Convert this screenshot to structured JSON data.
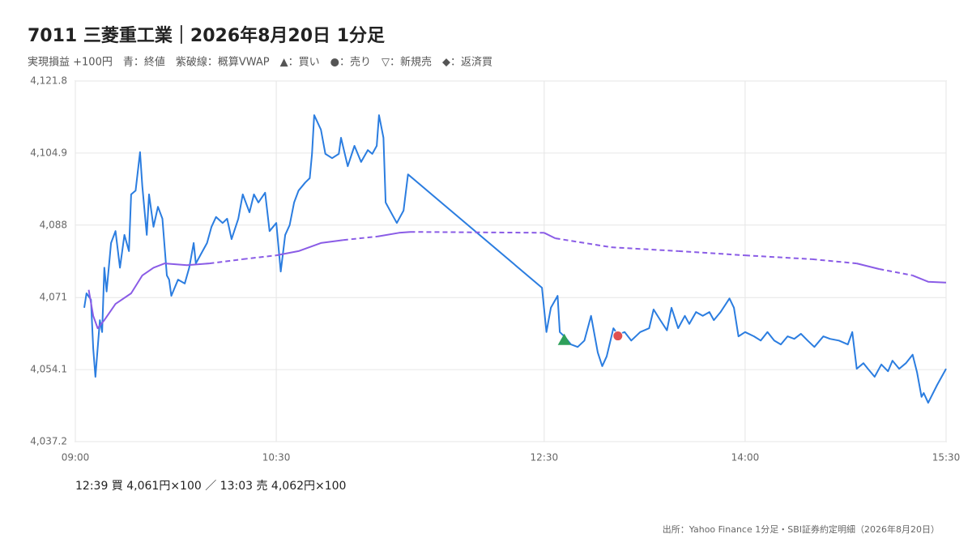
{
  "chart_data": {
    "type": "line",
    "title": "7011 三菱重工業｜2026年8月20日 1分足",
    "subtitle": "実現損益 +100円　青：終値　紫破線：概算VWAP　▲：買い　●：売り　▽：新規売　◆：返済買",
    "note": "12:39 買 4,061円×100 ／ 13:03 売 4,062円×100",
    "source": "出所：Yahoo Finance 1分足・SBI証券約定明細（2026年8月20日）",
    "xlim": [
      "09:00",
      "15:30"
    ],
    "xticks": [
      "09:00",
      "10:30",
      "12:30",
      "14:00",
      "15:30"
    ],
    "ylim": [
      4037.2,
      4121.8
    ],
    "yticks": [
      {
        "value": 4037.2,
        "label": "4,037.2"
      },
      {
        "value": 4054.1,
        "label": "4,054.1"
      },
      {
        "value": 4071,
        "label": "4,071"
      },
      {
        "value": 4088,
        "label": "4,088"
      },
      {
        "value": 4104.9,
        "label": "4,104.9"
      },
      {
        "value": 4121.8,
        "label": "4,121.8"
      }
    ],
    "grid": true,
    "series": [
      {
        "color": "#2b7de0",
        "gap_style": "solid",
        "x": [
          "09:04",
          "09:05",
          "09:07",
          "09:08",
          "09:09",
          "09:11",
          "09:12",
          "09:13",
          "09:14",
          "09:16",
          "09:18",
          "09:20",
          "09:22",
          "09:24",
          "09:25",
          "09:27",
          "09:29",
          "09:30",
          "09:32",
          "09:33",
          "09:35",
          "09:37",
          "09:39",
          "09:41",
          "09:42",
          "09:43",
          "09:46",
          "09:49",
          "09:51",
          "09:53",
          "09:54",
          "09:57",
          "09:59",
          "10:01",
          "10:03",
          "10:06",
          "10:08",
          "10:10",
          "10:13",
          "10:15",
          "10:18",
          "10:20",
          "10:22",
          "10:25",
          "10:27",
          "10:30",
          "10:32",
          "10:34",
          "10:36",
          "10:38",
          "10:40",
          "10:43",
          "10:45",
          "10:46",
          "10:47",
          "10:50",
          "10:52",
          "10:55",
          "10:58",
          "10:59",
          "11:02",
          "11:05",
          "11:08",
          "11:11",
          "11:13",
          "11:15",
          "11:16",
          "11:18",
          "11:19",
          "11:22",
          "11:24",
          "11:27",
          "11:29",
          "12:29",
          "12:31",
          "12:33",
          "12:36",
          "12:37",
          "12:39",
          "12:42",
          "12:45",
          "12:48",
          "12:51",
          "12:54",
          "12:56",
          "12:58",
          "13:01",
          "13:03",
          "13:06",
          "13:09",
          "13:13",
          "13:17",
          "13:19",
          "13:22",
          "13:25",
          "13:27",
          "13:30",
          "13:33",
          "13:35",
          "13:38",
          "13:41",
          "13:44",
          "13:46",
          "13:49",
          "13:53",
          "13:55",
          "13:57",
          "14:00",
          "14:04",
          "14:07",
          "14:10",
          "14:13",
          "14:16",
          "14:19",
          "14:22",
          "14:25",
          "14:28",
          "14:31",
          "14:35",
          "14:38",
          "14:42",
          "14:46",
          "14:48",
          "14:50",
          "14:53",
          "14:55",
          "14:58",
          "15:01",
          "15:04",
          "15:06",
          "15:09",
          "15:12",
          "15:15",
          "15:17",
          "15:19",
          "15:20",
          "15:22",
          "15:26",
          "15:30"
        ],
        "values": [
          4068.6,
          4072,
          4070.5,
          4059,
          4052.4,
          4065.7,
          4062.9,
          4078,
          4072.4,
          4083.8,
          4086.6,
          4078,
          4085.7,
          4081.9,
          4095.2,
          4096.1,
          4105.1,
          4097.1,
          4085.7,
          4095.2,
          4087.6,
          4092.3,
          4089.5,
          4076.2,
          4075.2,
          4071.4,
          4075.2,
          4074.3,
          4078,
          4083.8,
          4079,
          4081.9,
          4083.8,
          4087.6,
          4089.9,
          4088.5,
          4089.5,
          4084.7,
          4089.5,
          4095.2,
          4091,
          4095.2,
          4093.3,
          4095.6,
          4086.6,
          4088.5,
          4077.1,
          4085.7,
          4088,
          4093.3,
          4096.1,
          4098,
          4099,
          4104.7,
          4113.8,
          4110.4,
          4104.7,
          4103.7,
          4104.7,
          4108.5,
          4101.8,
          4106.6,
          4102.8,
          4105.6,
          4104.7,
          4106.6,
          4113.8,
          4108.5,
          4093.3,
          4090.4,
          4088.5,
          4091.4,
          4099.9,
          4073.3,
          4062.9,
          4068.6,
          4071.4,
          4062.9,
          4061.9,
          4060,
          4059.4,
          4060.9,
          4066.7,
          4058.1,
          4054.9,
          4057.2,
          4063.8,
          4062.3,
          4062.9,
          4060.9,
          4062.9,
          4063.8,
          4068.2,
          4065.7,
          4063.3,
          4068.6,
          4063.8,
          4066.7,
          4064.8,
          4067.6,
          4066.7,
          4067.6,
          4065.7,
          4067.6,
          4070.8,
          4068.6,
          4061.9,
          4062.9,
          4061.9,
          4060.9,
          4062.9,
          4060.9,
          4060,
          4061.9,
          4061.3,
          4062.5,
          4060.9,
          4059.4,
          4061.9,
          4061.3,
          4060.9,
          4060,
          4062.9,
          4054.3,
          4055.6,
          4054.3,
          4052.4,
          4055.3,
          4053.7,
          4056.2,
          4054.3,
          4055.6,
          4057.6,
          4053.4,
          4047.7,
          4048.6,
          4046.3,
          4050.5,
          4054.3
        ]
      },
      {
        "color": "#8a5ce6",
        "gap_style": "dashed",
        "x": [
          "09:06",
          "09:08",
          "09:10",
          "09:13",
          "09:18",
          "09:25",
          "09:30",
          "09:35",
          "09:40",
          "09:50",
          "10:00",
          "10:15",
          "10:30",
          "10:40",
          "10:50",
          "11:00",
          "11:15",
          "11:25",
          "11:30",
          "12:30",
          "12:35",
          "13:00",
          "13:30",
          "14:00",
          "14:30",
          "14:50",
          "15:00",
          "15:15",
          "15:22",
          "15:30"
        ],
        "values": [
          4072.8,
          4066.7,
          4063.8,
          4065.7,
          4069.5,
          4072,
          4076.2,
          4078,
          4079,
          4078.6,
          4079,
          4080,
          4080.9,
          4081.9,
          4083.8,
          4084.5,
          4085.3,
          4086.2,
          4086.4,
          4086.2,
          4084.9,
          4082.8,
          4081.9,
          4080.9,
          4080,
          4079,
          4077.7,
          4076.2,
          4074.7,
          4074.5
        ]
      }
    ],
    "markers": [
      {
        "x": "12:39",
        "value": 4061,
        "shape": "triangle",
        "color": "#2ea05a"
      },
      {
        "x": "13:03",
        "value": 4062,
        "shape": "circle",
        "color": "#e05050"
      }
    ]
  }
}
